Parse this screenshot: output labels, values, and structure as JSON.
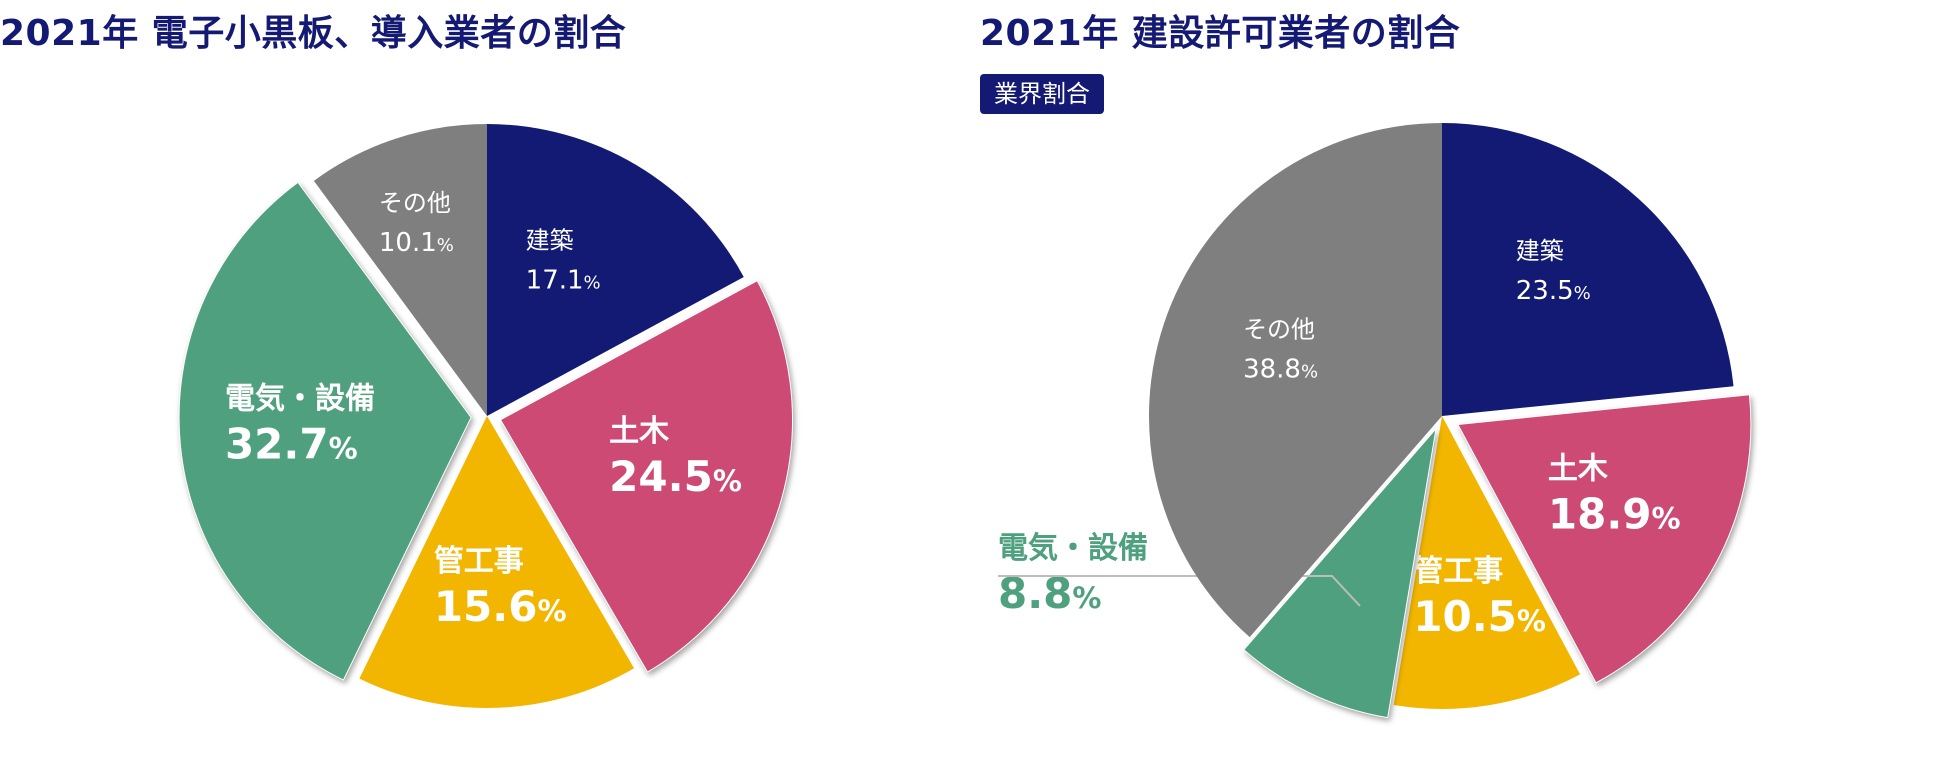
{
  "chart_data": [
    {
      "type": "pie",
      "title": "2021年 電子小黒板、導入業者の割合",
      "categories": [
        "建築",
        "土木",
        "管工事",
        "電気・設備",
        "その他"
      ],
      "values": [
        17.1,
        24.5,
        15.6,
        32.7,
        10.1
      ],
      "unit": "%",
      "colors": [
        "#121a74",
        "#cc4a74",
        "#f2b600",
        "#4fa07f",
        "#7f7f7f"
      ],
      "exploded": [
        "土木",
        "電気・設備"
      ],
      "slices": [
        {
          "name": "建築",
          "value": 17.1,
          "pct_text": "17.1"
        },
        {
          "name": "土木",
          "value": 24.5,
          "pct_text": "24.5"
        },
        {
          "name": "管工事",
          "value": 15.6,
          "pct_text": "15.6"
        },
        {
          "name": "電気・設備",
          "value": 32.7,
          "pct_text": "32.7"
        },
        {
          "name": "その他",
          "value": 10.1,
          "pct_text": "10.1"
        }
      ]
    },
    {
      "type": "pie",
      "title": "2021年 建設許可業者の割合",
      "badge": "業界割合",
      "categories": [
        "建築",
        "土木",
        "管工事",
        "電気・設備",
        "その他"
      ],
      "values": [
        23.5,
        18.9,
        10.5,
        8.8,
        38.8
      ],
      "unit": "%",
      "colors": [
        "#121a74",
        "#cc4a74",
        "#f2b600",
        "#4fa07f",
        "#7f7f7f"
      ],
      "exploded": [
        "土木",
        "電気・設備"
      ],
      "callout": "電気・設備",
      "slices": [
        {
          "name": "建築",
          "value": 23.5,
          "pct_text": "23.5"
        },
        {
          "name": "土木",
          "value": 18.9,
          "pct_text": "18.9"
        },
        {
          "name": "管工事",
          "value": 10.5,
          "pct_text": "10.5"
        },
        {
          "name": "電気・設備",
          "value": 8.8,
          "pct_text": "8.8"
        },
        {
          "name": "その他",
          "value": 38.8,
          "pct_text": "38.8"
        }
      ]
    }
  ]
}
